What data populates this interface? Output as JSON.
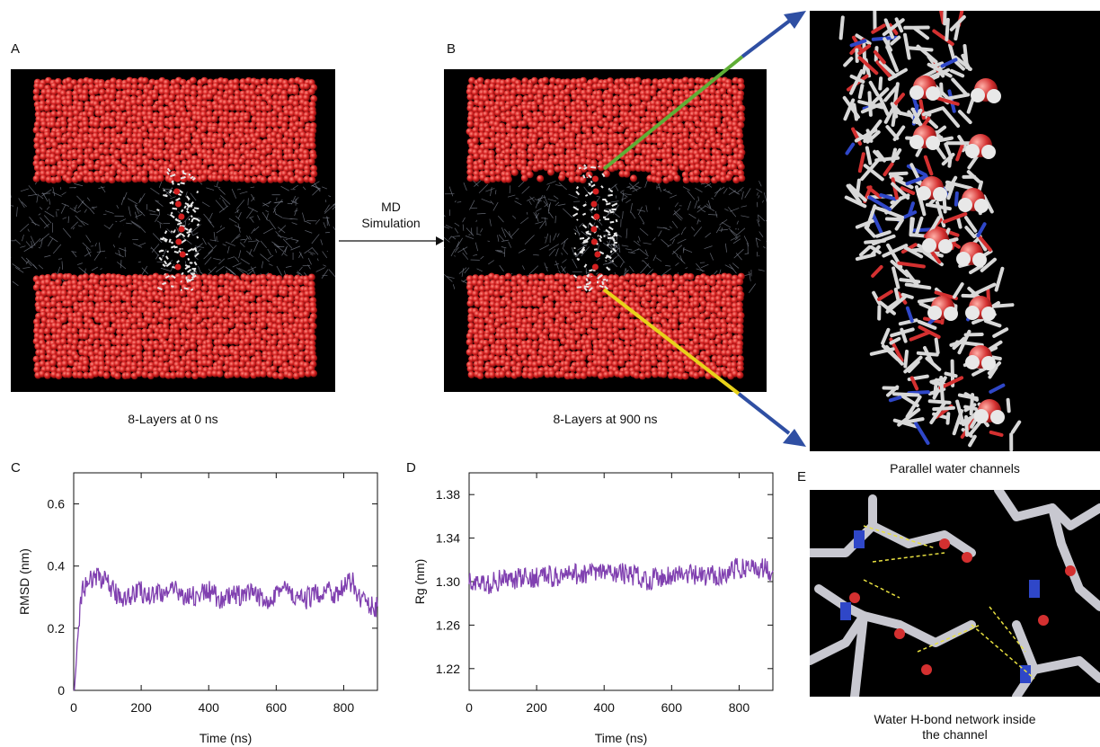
{
  "panels": {
    "a": {
      "letter": "A",
      "caption": "8-Layers at 0 ns"
    },
    "b": {
      "letter": "B",
      "caption": "8-Layers at 900 ns"
    },
    "c": {
      "letter": "C"
    },
    "d": {
      "letter": "D"
    },
    "e": {
      "letter": "E",
      "caption_line1": "Water H-bond network inside",
      "caption_line2": "the channel"
    },
    "zoom": {
      "caption": "Parallel water channels"
    }
  },
  "arrow": {
    "line1": "MD",
    "line2": "Simulation"
  },
  "colors": {
    "water": "#d42020",
    "membrane": "#7a7f8c",
    "peptide": "#e8e8e8",
    "series": "#8040b0",
    "pointer_top": "#5fae35",
    "pointer_bottom": "#e8d21a",
    "zoom_arrow": "#2f4fa3",
    "nitrogen": "#2f47c8",
    "oxygen": "#d43030"
  },
  "chart_data": [
    {
      "type": "line",
      "panel": "C",
      "xlabel": "Time (ns)",
      "ylabel": "RMSD (nm)",
      "xlim": [
        0,
        900
      ],
      "ylim": [
        0,
        0.7
      ],
      "xticks": [
        0,
        200,
        400,
        600,
        800
      ],
      "yticks": [
        0,
        0.2,
        0.4,
        0.6
      ],
      "ytick_labels": [
        "0",
        "0.2",
        "0.4",
        "0.6"
      ],
      "x": [
        0,
        25,
        50,
        75,
        100,
        125,
        150,
        175,
        200,
        225,
        250,
        275,
        300,
        325,
        350,
        375,
        400,
        425,
        450,
        475,
        500,
        525,
        550,
        575,
        600,
        625,
        650,
        675,
        700,
        725,
        750,
        775,
        800,
        825,
        850,
        875,
        900
      ],
      "y": [
        0.0,
        0.33,
        0.35,
        0.37,
        0.34,
        0.31,
        0.3,
        0.31,
        0.32,
        0.3,
        0.32,
        0.31,
        0.32,
        0.31,
        0.3,
        0.31,
        0.32,
        0.3,
        0.29,
        0.31,
        0.3,
        0.31,
        0.3,
        0.29,
        0.32,
        0.33,
        0.3,
        0.29,
        0.3,
        0.31,
        0.33,
        0.31,
        0.33,
        0.35,
        0.3,
        0.27,
        0.27
      ]
    },
    {
      "type": "line",
      "panel": "D",
      "xlabel": "Time (ns)",
      "ylabel": "Rg (nm)",
      "xlim": [
        0,
        900
      ],
      "ylim": [
        1.2,
        1.4
      ],
      "xticks": [
        0,
        200,
        400,
        600,
        800
      ],
      "yticks": [
        1.22,
        1.26,
        1.3,
        1.34,
        1.38
      ],
      "ytick_labels": [
        "1.22",
        "1.26",
        "1.30",
        "1.34",
        "1.38"
      ],
      "x": [
        0,
        25,
        50,
        75,
        100,
        125,
        150,
        175,
        200,
        225,
        250,
        275,
        300,
        325,
        350,
        375,
        400,
        425,
        450,
        475,
        500,
        525,
        550,
        575,
        600,
        625,
        650,
        675,
        700,
        725,
        750,
        775,
        800,
        825,
        850,
        875,
        900
      ],
      "y": [
        1.3,
        1.298,
        1.296,
        1.3,
        1.302,
        1.3,
        1.303,
        1.302,
        1.305,
        1.306,
        1.304,
        1.305,
        1.306,
        1.307,
        1.308,
        1.307,
        1.309,
        1.307,
        1.308,
        1.306,
        1.305,
        1.302,
        1.303,
        1.305,
        1.306,
        1.307,
        1.306,
        1.305,
        1.304,
        1.306,
        1.307,
        1.31,
        1.312,
        1.314,
        1.313,
        1.312,
        1.31
      ]
    }
  ]
}
